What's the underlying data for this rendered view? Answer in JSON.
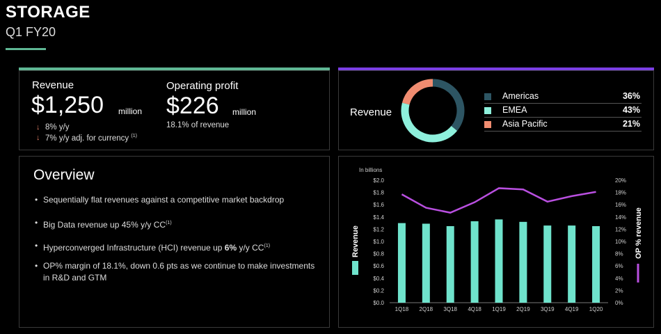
{
  "header": {
    "title": "STORAGE",
    "subtitle": "Q1 FY20"
  },
  "colors": {
    "green_accent": "#5fb794",
    "purple_accent": "#7b3fe4",
    "americas": "#2d5563",
    "emea": "#8ef0dc",
    "apac": "#f08c70",
    "bar": "#6fe3cc",
    "line": "#b94fe0",
    "down_arrow": "#e8826b"
  },
  "revenue_card": {
    "revenue_label": "Revenue",
    "revenue_value": "$1,250",
    "revenue_unit": "million",
    "yy": "8% y/y",
    "yy_cc": "7% y/y adj. for currency",
    "yy_cc_note": "(1)",
    "op_label": "Operating profit",
    "op_value": "$226",
    "op_unit": "million",
    "op_pct": "18.1% of revenue"
  },
  "overview": {
    "title": "Overview",
    "bullets": [
      {
        "text": "Sequentially flat revenues against a competitive market backdrop",
        "sup": ""
      },
      {
        "text": "Big Data revenue up 45% y/y CC",
        "sup": "(1)"
      },
      {
        "pre": "Hyperconverged Infrastructure (HCI) revenue up ",
        "bold": "6%",
        "post": " y/y CC",
        "sup": "(1)"
      },
      {
        "text": "OP% margin of 18.1%, down 0.6 pts as we continue to make investments in R&D and GTM",
        "sup": ""
      }
    ]
  },
  "donut": {
    "label": "Revenue",
    "segments": [
      {
        "name": "Americas",
        "pct": "36%",
        "value": 36,
        "color": "#2d5563"
      },
      {
        "name": "EMEA",
        "pct": "43%",
        "value": 43,
        "color": "#8ef0dc"
      },
      {
        "name": "Asia Pacific",
        "pct": "21%",
        "value": 21,
        "color": "#f08c70"
      }
    ]
  },
  "chart_data": {
    "type": "bar",
    "categories": [
      "1Q18",
      "2Q18",
      "3Q18",
      "4Q18",
      "1Q19",
      "2Q19",
      "3Q19",
      "4Q19",
      "1Q20"
    ],
    "series": [
      {
        "name": "Revenue",
        "type": "bar",
        "axis": "left",
        "values": [
          1.3,
          1.29,
          1.25,
          1.33,
          1.36,
          1.32,
          1.26,
          1.26,
          1.25
        ]
      },
      {
        "name": "OP % revenue",
        "type": "line",
        "axis": "right",
        "values": [
          17.7,
          15.5,
          14.7,
          16.4,
          18.7,
          18.5,
          16.5,
          17.4,
          18.1
        ]
      }
    ],
    "units_note": "In billions",
    "ylabel": "Revenue",
    "y2label": "OP % revenue",
    "ylim": [
      0,
      2.0
    ],
    "y2lim": [
      0,
      20
    ],
    "yticks": [
      "$0.0",
      "$0.2",
      "$0.4",
      "$0.6",
      "$0.8",
      "$1.0",
      "$1.2",
      "$1.4",
      "$1.6",
      "$1.8",
      "$2.0"
    ],
    "y2ticks": [
      "0%",
      "2%",
      "4%",
      "6%",
      "8%",
      "10%",
      "12%",
      "14%",
      "16%",
      "18%",
      "20%"
    ],
    "grid": false,
    "legend": "right-side vertical"
  }
}
